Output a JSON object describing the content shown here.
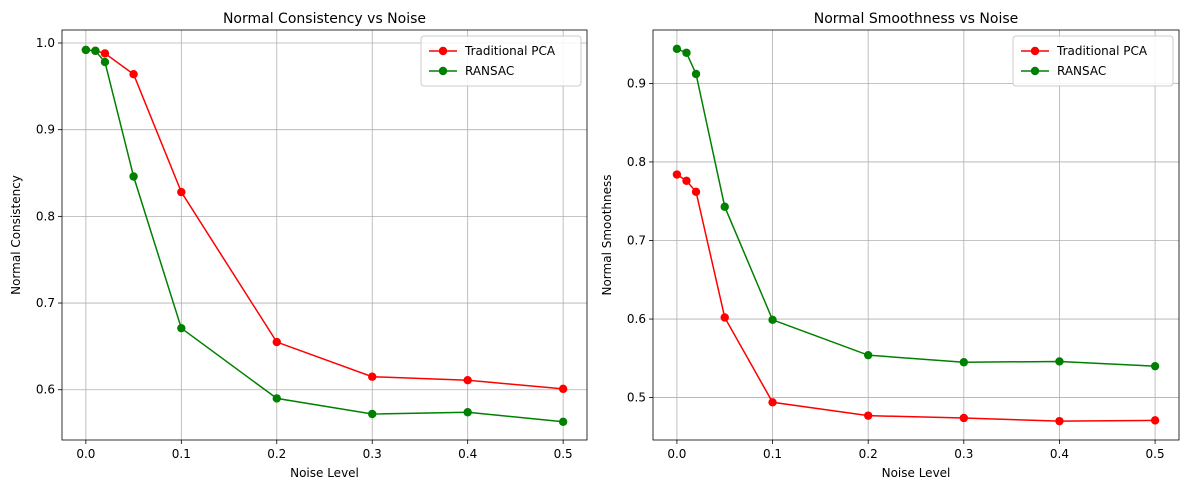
{
  "chart_data": [
    {
      "type": "line",
      "title": "Normal Consistency vs Noise",
      "xlabel": "Noise Level",
      "ylabel": "Normal Consistency",
      "xlim": [
        -0.025,
        0.525
      ],
      "ylim": [
        0.542,
        1.015
      ],
      "xticks": [
        0.0,
        0.1,
        0.2,
        0.3,
        0.4,
        0.5
      ],
      "xtick_labels": [
        "0.0",
        "0.1",
        "0.2",
        "0.3",
        "0.4",
        "0.5"
      ],
      "yticks": [
        0.6,
        0.7,
        0.8,
        0.9,
        1.0
      ],
      "ytick_labels": [
        "0.6",
        "0.7",
        "0.8",
        "0.9",
        "1.0"
      ],
      "grid": true,
      "legend_position": "top-right",
      "series": [
        {
          "name": "Traditional PCA",
          "color": "#ff0000",
          "x": [
            0.0,
            0.01,
            0.02,
            0.05,
            0.1,
            0.2,
            0.3,
            0.4,
            0.5
          ],
          "y": [
            0.992,
            0.991,
            0.988,
            0.964,
            0.828,
            0.655,
            0.615,
            0.611,
            0.601
          ]
        },
        {
          "name": "RANSAC",
          "color": "#008000",
          "x": [
            0.0,
            0.01,
            0.02,
            0.05,
            0.1,
            0.2,
            0.3,
            0.4,
            0.5
          ],
          "y": [
            0.992,
            0.991,
            0.978,
            0.846,
            0.671,
            0.59,
            0.572,
            0.574,
            0.563
          ]
        }
      ]
    },
    {
      "type": "line",
      "title": "Normal Smoothness vs Noise",
      "xlabel": "Noise Level",
      "ylabel": "Normal Smoothness",
      "xlim": [
        -0.025,
        0.525
      ],
      "ylim": [
        0.446,
        0.968
      ],
      "xticks": [
        0.0,
        0.1,
        0.2,
        0.3,
        0.4,
        0.5
      ],
      "xtick_labels": [
        "0.0",
        "0.1",
        "0.2",
        "0.3",
        "0.4",
        "0.5"
      ],
      "yticks": [
        0.5,
        0.6,
        0.7,
        0.8,
        0.9
      ],
      "ytick_labels": [
        "0.5",
        "0.6",
        "0.7",
        "0.8",
        "0.9"
      ],
      "grid": true,
      "legend_position": "top-right",
      "series": [
        {
          "name": "Traditional PCA",
          "color": "#ff0000",
          "x": [
            0.0,
            0.01,
            0.02,
            0.05,
            0.1,
            0.2,
            0.3,
            0.4,
            0.5
          ],
          "y": [
            0.784,
            0.776,
            0.762,
            0.602,
            0.494,
            0.477,
            0.474,
            0.47,
            0.471
          ]
        },
        {
          "name": "RANSAC",
          "color": "#008000",
          "x": [
            0.0,
            0.01,
            0.02,
            0.05,
            0.1,
            0.2,
            0.3,
            0.4,
            0.5
          ],
          "y": [
            0.944,
            0.939,
            0.912,
            0.743,
            0.599,
            0.554,
            0.545,
            0.546,
            0.54
          ]
        }
      ]
    }
  ]
}
